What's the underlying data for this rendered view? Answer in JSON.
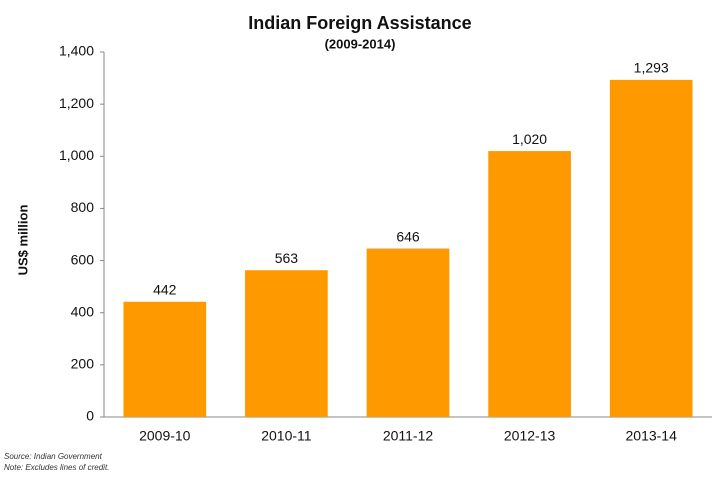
{
  "chart_data": {
    "type": "bar",
    "title": "Indian Foreign Assistance",
    "subtitle": "(2009-2014)",
    "y_label": "US$ million",
    "categories": [
      "2009-10",
      "2010-11",
      "2011-12",
      "2012-13",
      "2013-14"
    ],
    "values": [
      442,
      563,
      646,
      1020,
      1293
    ],
    "value_labels": [
      "442",
      "563",
      "646",
      "1,020",
      "1,293"
    ],
    "color": "#ff9900",
    "ylim": [
      0,
      1400
    ],
    "yticks": [
      0,
      200,
      400,
      600,
      800,
      {
        "value": 1000,
        "label": "1,000"
      },
      {
        "value": 1200,
        "label": "1,200"
      },
      {
        "value": 1400,
        "label": "1,400"
      }
    ],
    "grid": false,
    "source": "Source: Indian Government",
    "note": "Note: Excludes lines of credit."
  }
}
